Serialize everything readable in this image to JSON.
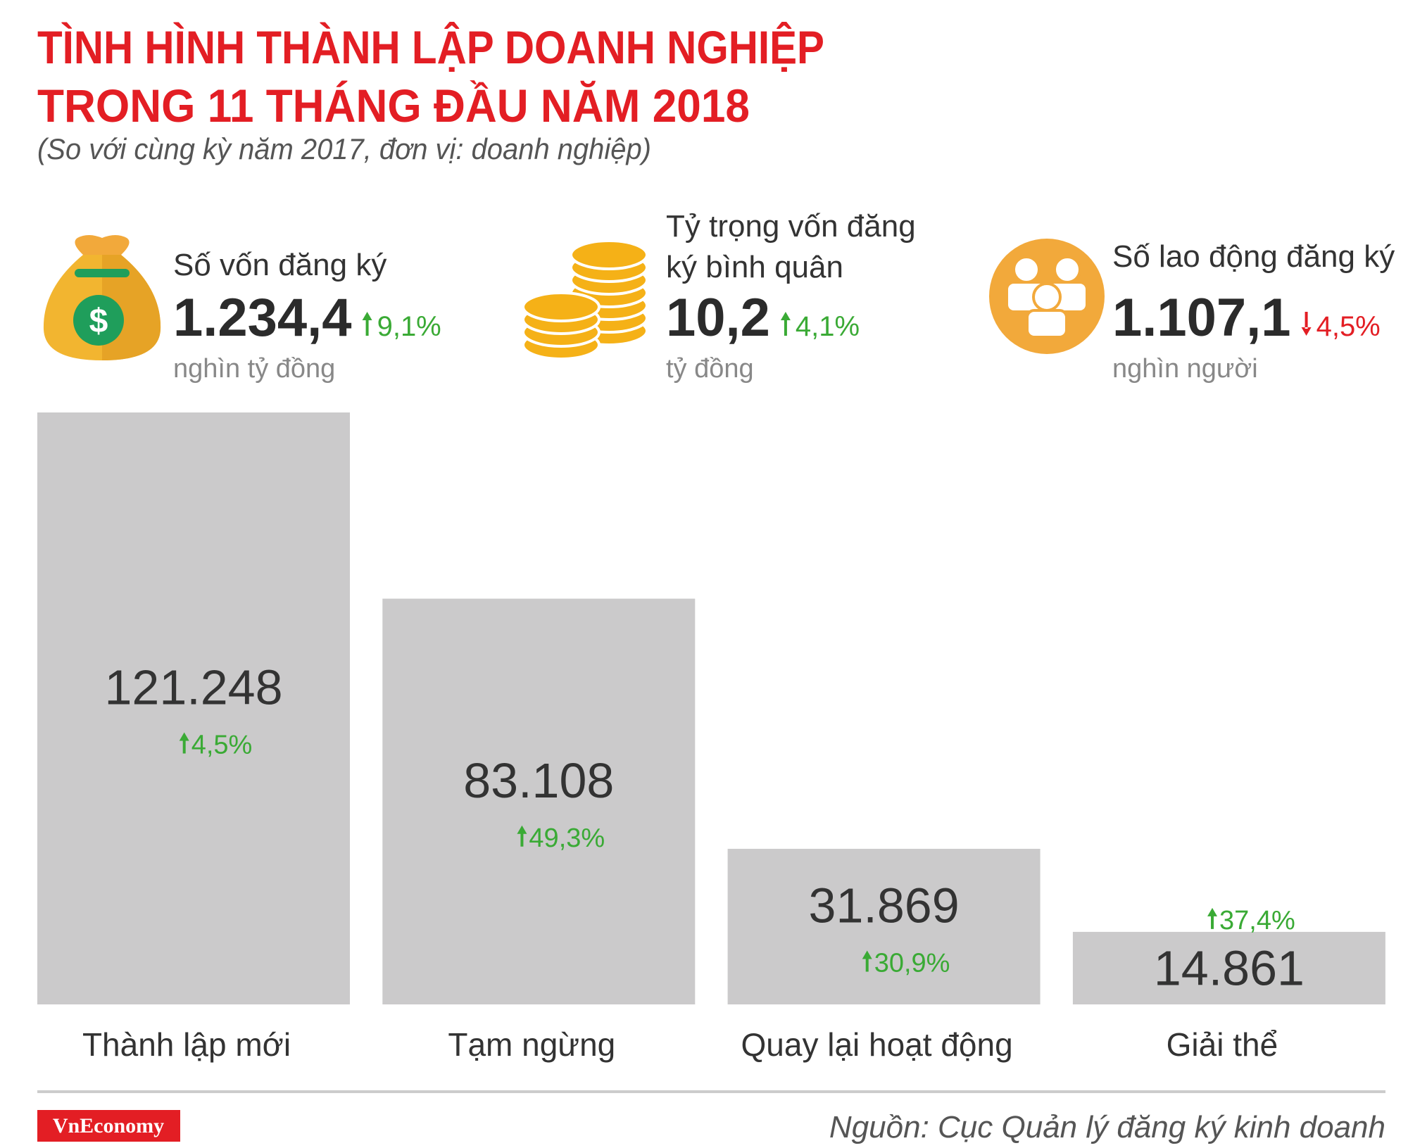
{
  "header": {
    "title_lines": [
      "TÌNH HÌNH THÀNH LẬP DOANH NGHIỆP",
      "TRONG 11 THÁNG ĐẦU NĂM 2018"
    ],
    "subtitle": "(So với cùng kỳ năm 2017, đơn vị: doanh nghiệp)"
  },
  "kpis": [
    {
      "label_lines": [
        "Số vốn đăng ký"
      ],
      "value": 1234.4,
      "value_label": "1.234,4",
      "change": 9.1,
      "change_label": "9,1%",
      "direction": "up",
      "unit": "nghìn tỷ đồng"
    },
    {
      "label_lines": [
        "Tỷ trọng vốn đăng",
        "ký bình quân"
      ],
      "value": 10.2,
      "value_label": "10,2",
      "change": 4.1,
      "change_label": "4,1%",
      "direction": "up",
      "unit": "tỷ đồng"
    },
    {
      "label_lines": [
        "Số lao động đăng ký"
      ],
      "value": 1107.1,
      "value_label": "1.107,1",
      "change": 4.5,
      "change_label": "4,5%",
      "direction": "down",
      "unit": "nghìn người"
    }
  ],
  "chart_data": {
    "type": "bar",
    "categories": [
      "Thành lập mới",
      "Tạm ngừng",
      "Quay lại hoạt động",
      "Giải thể"
    ],
    "values": [
      121248,
      83108,
      31869,
      14861
    ],
    "value_labels": [
      "121.248",
      "83.108",
      "31.869",
      "14.861"
    ],
    "changes": [
      4.5,
      49.3,
      30.9,
      37.4
    ],
    "change_labels": [
      "4,5%",
      "49,3%",
      "30,9%",
      "37,4%"
    ],
    "color": "#cbcacb",
    "ylim": [
      0,
      121248
    ]
  },
  "footer": {
    "logo": "VnEconomy",
    "source": "Nguồn: Cục Quản lý đăng ký kinh doanh"
  }
}
